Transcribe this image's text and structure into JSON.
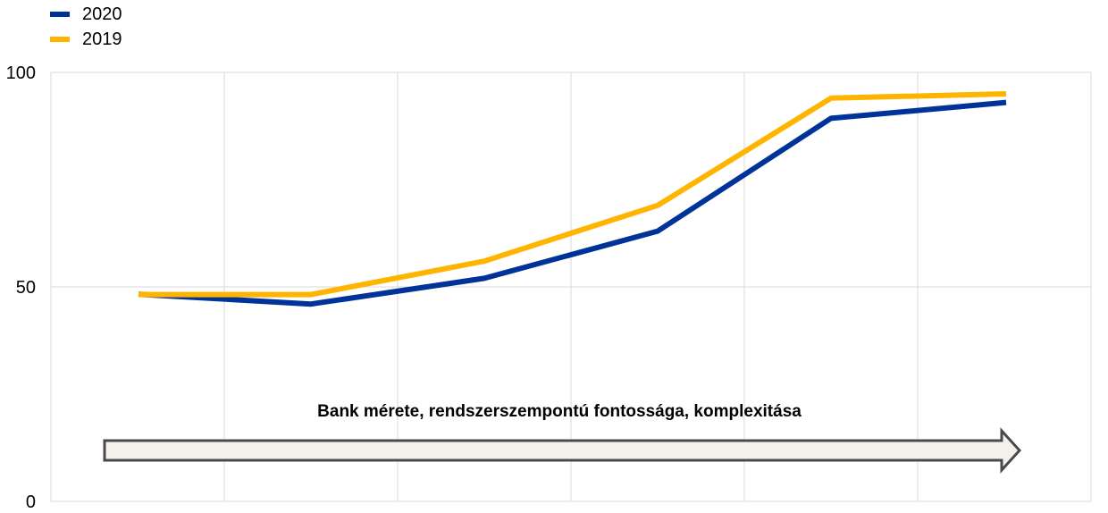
{
  "chart_data": {
    "type": "line",
    "title": "",
    "xlabel": "",
    "ylabel": "",
    "ylim": [
      0,
      100
    ],
    "yticks": [
      0,
      50,
      100
    ],
    "grid": true,
    "legend_position": "top-left",
    "x": [
      1,
      2,
      3,
      4,
      5,
      6
    ],
    "series": [
      {
        "name": "2020",
        "color": "#003399",
        "values": [
          48.3,
          46,
          52,
          63,
          89.3,
          93
        ]
      },
      {
        "name": "2019",
        "color": "#FFB400",
        "values": [
          48.2,
          48.2,
          56,
          69,
          94,
          95
        ]
      }
    ],
    "annotation": {
      "text": "Bank mérete, rendszerszempontú fontossága, komplexitása",
      "arrow": "right"
    }
  }
}
